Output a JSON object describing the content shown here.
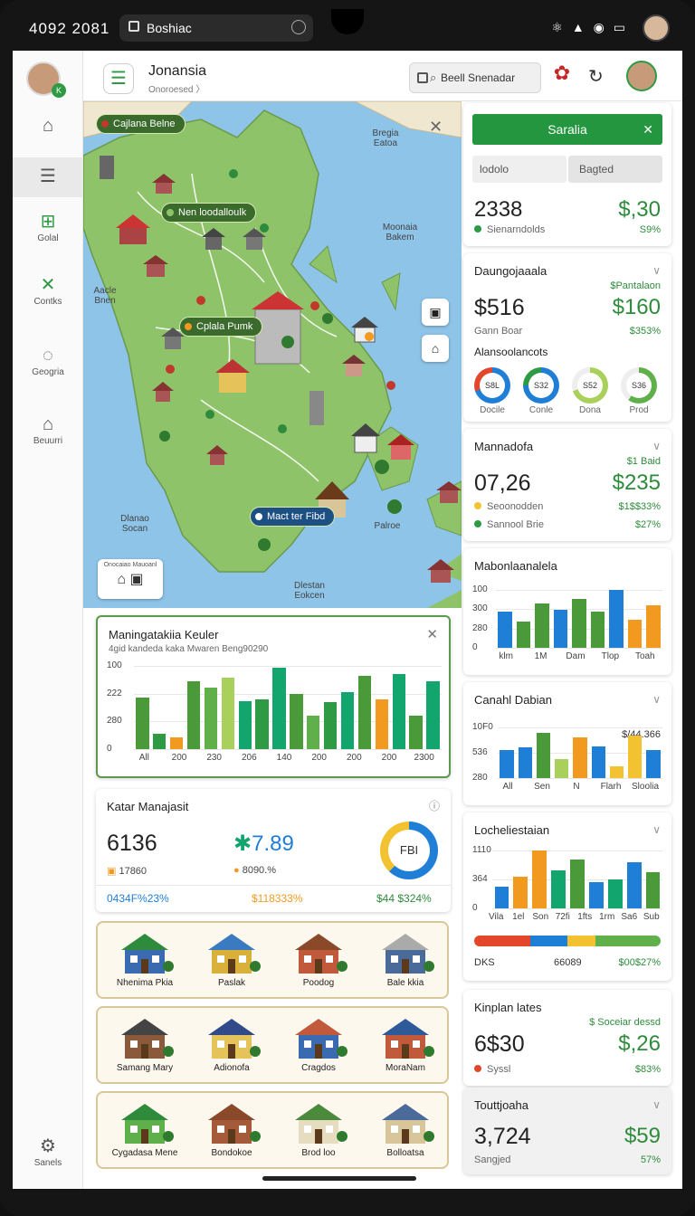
{
  "statusbar": {
    "time": "4092 2081",
    "url": "Boshiac",
    "icons": "⚛ ▲ ◉ ▭"
  },
  "sidebar": {
    "avatar_badge": "K",
    "items": [
      {
        "label": "",
        "icon": "home-icon"
      },
      {
        "label": "",
        "icon": "list-icon"
      },
      {
        "label": "Golal",
        "icon": "grid-icon"
      },
      {
        "label": "Contks",
        "icon": "close-icon"
      },
      {
        "label": "Geogria",
        "icon": "location-icon"
      },
      {
        "label": "Beuurri",
        "icon": "house-icon"
      },
      {
        "label": "Sanels",
        "icon": "settings-icon"
      }
    ]
  },
  "topbar": {
    "title": "Jonansia",
    "subtitle": "Onoroesed 〉",
    "search_placeholder": "Beell Snenadar"
  },
  "map": {
    "pills": [
      "Cajlana Belne",
      "Nen loodalloulk",
      "Cplala Pumk",
      "Mact ter Fibd"
    ],
    "labels": [
      "Bregia Eatoa",
      "Moonaia Bakem",
      "Aacle Bnen",
      "Dlanao Socan",
      "Palroe",
      "Dlestan Eokcen"
    ],
    "mini_label": "Onocaiao Mauoanl"
  },
  "chart_main": {
    "title": "Maningatakiia Keuler",
    "subtitle": "4gid kandeda kaka Mwaren Beng90290",
    "y_ticks": [
      "100",
      "222",
      "280",
      "0"
    ],
    "x_ticks": [
      "All",
      "200",
      "230",
      "206",
      "140",
      "200",
      "200",
      "200",
      "2300"
    ]
  },
  "stats_card": {
    "title": "Katar Manajasit",
    "value1": "6136",
    "value1_sub": "17860",
    "value2": "7.89",
    "value2_sub": "8090.%",
    "donut_label": "FBI",
    "foot1": "0434F%23%",
    "foot2": "$118333%",
    "foot3": "$44 $324%"
  },
  "properties": [
    [
      "Nhenima Pkia",
      "Paslak",
      "Poodog",
      "Bale kkia"
    ],
    [
      "Samang Mary",
      "Adionofa",
      "Cragdos",
      "MoraNam"
    ],
    [
      "Cygadasa Mene",
      "Bondokoe",
      "Brod loo",
      "Bolloatsa"
    ]
  ],
  "right": {
    "sarala": {
      "button": "Saralia",
      "tab1": "lodolo",
      "tab2": "Bagted",
      "value": "2338",
      "value_green": "$,30",
      "legend": "Sienarndolds",
      "pct": "S9%"
    },
    "c1": {
      "title": "Daungojaaala",
      "top": "$Pantalaon",
      "value": "$516",
      "value_green": "$160",
      "sub": "Gann Boar",
      "pct": "$353%",
      "section": "Alansoolancots",
      "donuts": [
        {
          "center": "S8L",
          "label": "Docile"
        },
        {
          "center": "S32",
          "label": "Conle"
        },
        {
          "center": "S52",
          "label": "Dona"
        },
        {
          "center": "S36",
          "label": "Prod"
        }
      ]
    },
    "c2": {
      "title": "Mannadofa",
      "top": "$1 Baid",
      "value": "07,26",
      "value_green": "$235",
      "leg1": "Seoonodden",
      "leg1_pct": "$1$$33%",
      "leg2": "Sannool Brie",
      "leg2_pct": "$27%"
    },
    "c3": {
      "title": "Mabonlaanalela",
      "y_ticks": [
        "100",
        "300",
        "280",
        "0"
      ],
      "x_ticks": [
        "klm",
        "1M",
        "Dam",
        "Tlop",
        "Toah"
      ]
    },
    "c4": {
      "title": "Canahl Dabian",
      "annot": "$/44.366",
      "y_ticks": [
        "10F0",
        "536",
        "280"
      ],
      "x_ticks": [
        "All",
        "Sen",
        "N",
        "Flarh",
        "Sloolia"
      ]
    },
    "c5": {
      "title": "Locheliestaian",
      "y_ticks": [
        "1110",
        "364",
        "0"
      ],
      "x_ticks": [
        "Vila",
        "1el",
        "Son",
        "72fi",
        "1fts",
        "1rm",
        "Sa6",
        "Sub"
      ],
      "foot1": "DKS",
      "foot2": "66089",
      "foot3": "$00$27%"
    },
    "c6": {
      "title": "Kinplan lates",
      "top": "$ Soceiar dessd",
      "value": "6$30",
      "value_green": "$,26",
      "leg": "Syssl",
      "pct": "$83%"
    },
    "c7": {
      "title": "Touttjoaha",
      "value": "3,724",
      "value_green": "$59",
      "sub": "Sangjed",
      "pct": "57%"
    }
  },
  "colors": {
    "accent": "#2e9a44",
    "blue": "#1f7ed6",
    "orange": "#f29a1f",
    "yellow": "#f2c230",
    "teal": "#12a56d"
  }
}
